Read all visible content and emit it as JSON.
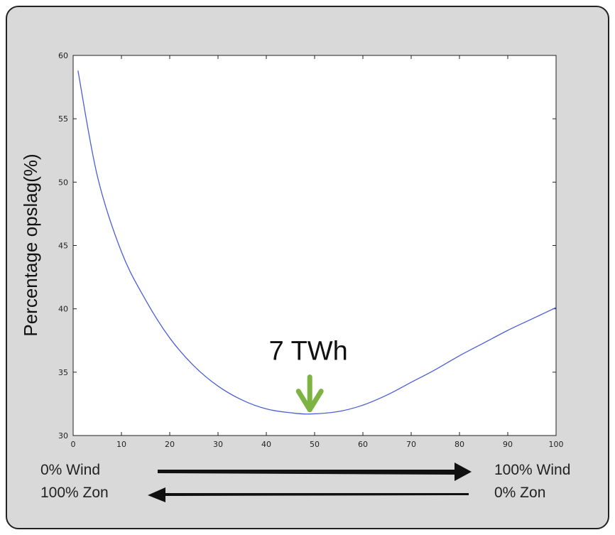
{
  "chart_data": {
    "type": "line",
    "title": "",
    "xlabel": "",
    "ylabel": "Percentage opslag(%)",
    "xlim": [
      0,
      100
    ],
    "ylim": [
      30,
      60
    ],
    "xticks": [
      0,
      10,
      20,
      30,
      40,
      50,
      60,
      70,
      80,
      90,
      100
    ],
    "yticks": [
      30,
      35,
      40,
      45,
      50,
      55,
      60
    ],
    "grid": false,
    "series": [
      {
        "color": "#4a5fd6",
        "x": [
          1,
          5,
          10,
          15,
          20,
          25,
          30,
          35,
          40,
          45,
          49,
          55,
          60,
          65,
          70,
          75,
          80,
          85,
          90,
          95,
          100
        ],
        "y": [
          58.8,
          50.5,
          44.5,
          40.7,
          37.7,
          35.5,
          33.9,
          32.8,
          32.1,
          31.8,
          31.7,
          31.9,
          32.4,
          33.2,
          34.2,
          35.2,
          36.3,
          37.3,
          38.3,
          39.2,
          40.1
        ]
      }
    ],
    "annotations": [
      {
        "text": "7 TWh",
        "x": 49,
        "y": 31.7,
        "arrow_color": "#7cb342"
      }
    ],
    "bottom_labels": {
      "left_top": "0% Wind",
      "left_bottom": "100% Zon",
      "right_top": "100% Wind",
      "right_bottom": "0% Zon"
    }
  }
}
